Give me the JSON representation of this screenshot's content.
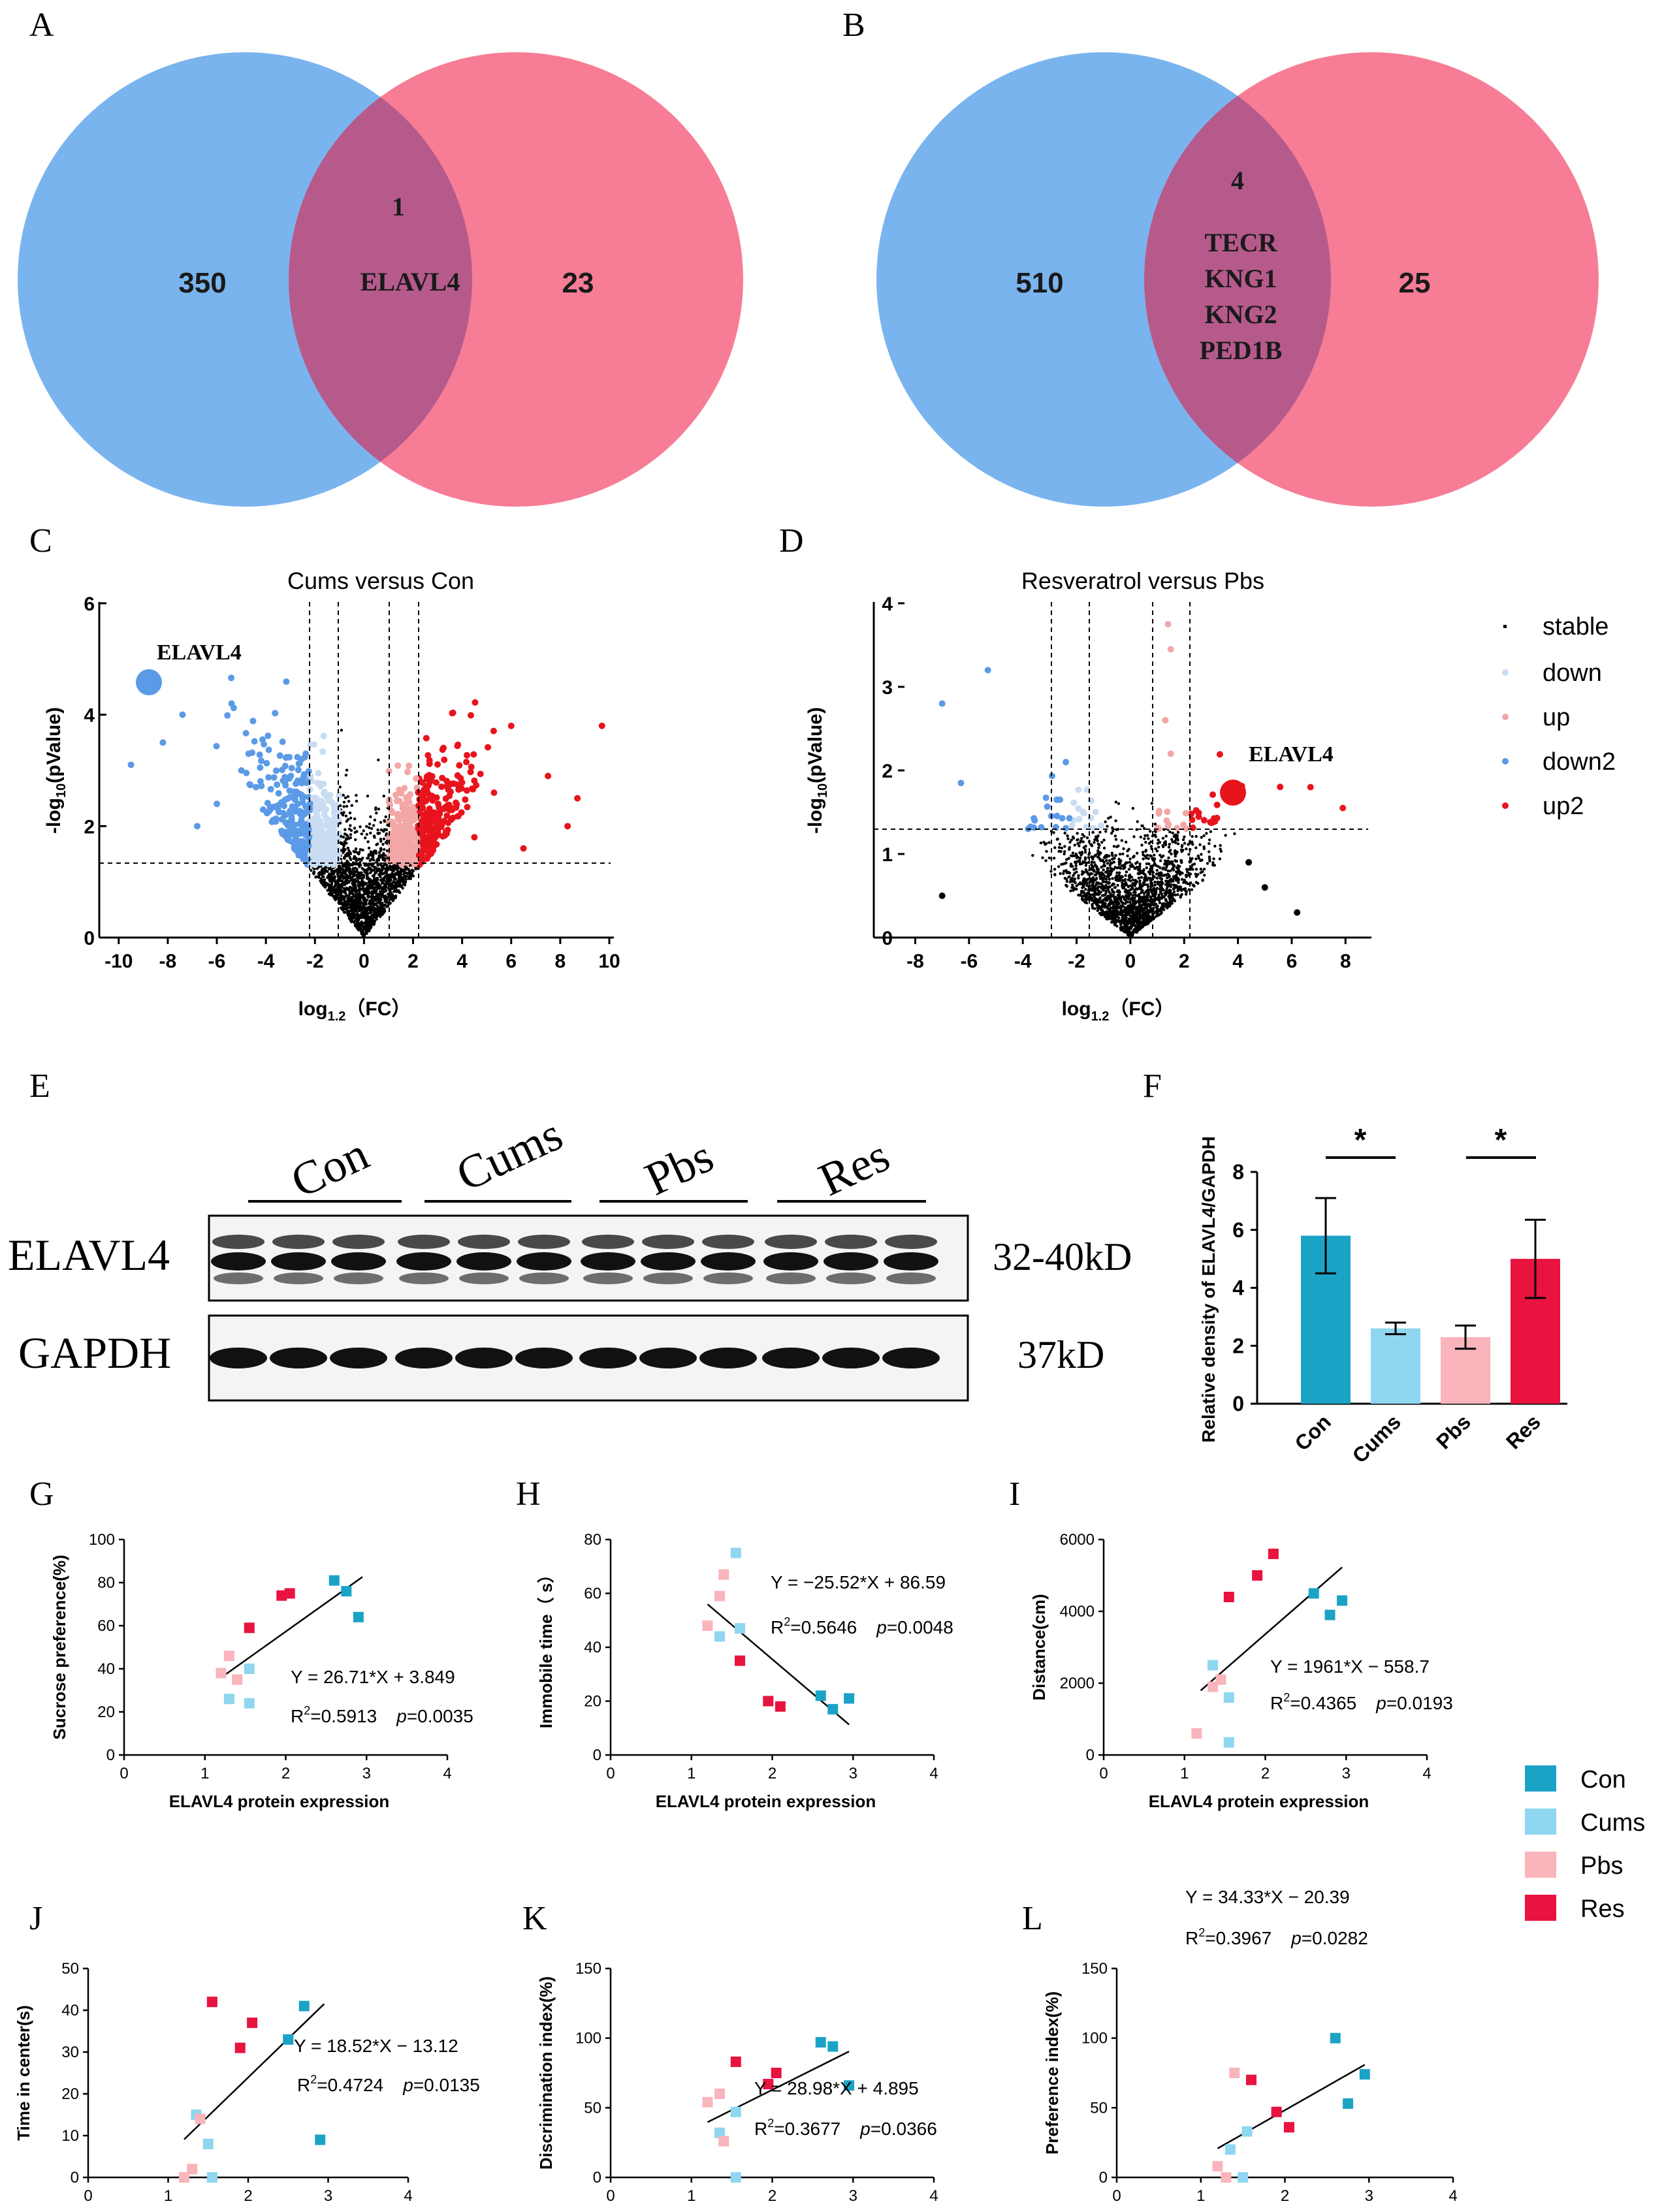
{
  "panels": {
    "A": "A",
    "B": "B",
    "C": "C",
    "D": "D",
    "E": "E",
    "F": "F",
    "G": "G",
    "H": "H",
    "I": "I",
    "J": "J",
    "K": "K",
    "L": "L"
  },
  "colors": {
    "blue_circle": "#7ab4ee",
    "pink_circle": "#f67d95",
    "overlap": "#b65a8c",
    "con": "#1ba3c6",
    "cums": "#8fd6f0",
    "pbs": "#f9b4bc",
    "res": "#e8133f",
    "down": "#c9dcf2",
    "up": "#f3a6a6",
    "down2": "#5b9ae6",
    "up2": "#e8141d"
  },
  "venn_a": {
    "left_count": "350",
    "overlap_count": "1",
    "overlap_genes": [
      "ELAVL4"
    ],
    "right_count": "23"
  },
  "venn_b": {
    "left_count": "510",
    "overlap_count": "4",
    "overlap_genes": [
      "TECR",
      "KNG1",
      "KNG2",
      "PED1B"
    ],
    "right_count": "25"
  },
  "volcano_c": {
    "title": "Cums versus Con",
    "ylabel": "-log10(pValue)",
    "ylabel_main": "-log",
    "ylabel_sub": "10",
    "ylabel_rest": "(pValue)",
    "xlabel_main": "log",
    "xlabel_sub": "1.2",
    "xlabel_rest": "（FC）",
    "xticks": [
      "-10",
      "-8",
      "-6",
      "-4",
      "-2",
      "0",
      "2",
      "4",
      "6",
      "8",
      "10"
    ],
    "yticks": [
      "0",
      "2",
      "4",
      "6"
    ],
    "highlight": "ELAVL4"
  },
  "volcano_d": {
    "title": "Resveratrol versus Pbs",
    "ylabel_main": "-log",
    "ylabel_sub": "10",
    "ylabel_rest": "(pValue)",
    "xlabel_main": "log",
    "xlabel_sub": "1.2",
    "xlabel_rest": "（FC）",
    "xticks": [
      "-8",
      "-6",
      "-4",
      "-2",
      "0",
      "2",
      "4",
      "6",
      "8"
    ],
    "yticks": [
      "0",
      "1",
      "2",
      "3",
      "4"
    ],
    "highlight": "ELAVL4"
  },
  "volcano_legend": [
    "stable",
    "down",
    "up",
    "down2",
    "up2"
  ],
  "blot": {
    "groups": [
      "Con",
      "Cums",
      "Pbs",
      "Res"
    ],
    "row1_label": "ELAVL4",
    "row1_size": "32-40kD",
    "row2_label": "GAPDH",
    "row2_size": "37kD"
  },
  "chart_data": [
    {
      "id": "F",
      "type": "bar",
      "title": "",
      "categories": [
        "Con",
        "Cums",
        "Pbs",
        "Res"
      ],
      "values": [
        5.8,
        2.6,
        2.3,
        5.0
      ],
      "errors": [
        1.3,
        0.2,
        0.4,
        1.35
      ],
      "ylabel": "Relative density of ELAVL4/GAPDH",
      "ylim": [
        0,
        8
      ],
      "yticks": [
        "0",
        "2",
        "4",
        "6",
        "8"
      ],
      "significance": [
        "*",
        "*"
      ]
    },
    {
      "id": "G",
      "type": "scatter",
      "ylabel": "Sucrose preference(%)",
      "xlabel": "ELAVL4 protein expression",
      "xlim": [
        0,
        4
      ],
      "ylim": [
        0,
        100
      ],
      "xticks": [
        "0",
        "1",
        "2",
        "3",
        "4"
      ],
      "yticks": [
        "0",
        "20",
        "40",
        "60",
        "80",
        "100"
      ],
      "equation": "Y = 26.71*X + 3.849",
      "r2_prefix": "R",
      "r2_value": "=0.5913",
      "p_label": "p",
      "p_value": "=0.0035",
      "fit": [
        1.2,
        2.95
      ],
      "slope": 26.71,
      "intercept": 3.849,
      "points": [
        [
          2.6,
          81,
          "con"
        ],
        [
          2.75,
          76,
          "con"
        ],
        [
          2.9,
          64,
          "con"
        ],
        [
          1.55,
          40,
          "cums"
        ],
        [
          1.3,
          26,
          "cums"
        ],
        [
          1.55,
          24,
          "cums"
        ],
        [
          1.2,
          38,
          "pbs"
        ],
        [
          1.3,
          46,
          "pbs"
        ],
        [
          1.4,
          35,
          "pbs"
        ],
        [
          1.55,
          59,
          "res"
        ],
        [
          1.95,
          74,
          "res"
        ],
        [
          2.05,
          75,
          "res"
        ]
      ]
    },
    {
      "id": "H",
      "type": "scatter",
      "ylabel": "Immobile time（ s）",
      "xlabel": "ELAVL4 protein expression",
      "xlim": [
        0,
        4
      ],
      "ylim": [
        0,
        80
      ],
      "xticks": [
        "0",
        "1",
        "2",
        "3",
        "4"
      ],
      "yticks": [
        "0",
        "20",
        "40",
        "60",
        "80"
      ],
      "equation": "Y = −25.52*X + 86.59",
      "r2_prefix": "R",
      "r2_value": "=0.5646",
      "p_label": "p",
      "p_value": "=0.0048",
      "fit": [
        1.2,
        2.95
      ],
      "slope": -25.52,
      "intercept": 86.59,
      "points": [
        [
          2.6,
          22,
          "con"
        ],
        [
          2.75,
          17,
          "con"
        ],
        [
          2.95,
          21,
          "con"
        ],
        [
          1.55,
          75,
          "cums"
        ],
        [
          1.6,
          47,
          "cums"
        ],
        [
          1.35,
          44,
          "cums"
        ],
        [
          1.2,
          48,
          "pbs"
        ],
        [
          1.4,
          67,
          "pbs"
        ],
        [
          1.35,
          59,
          "pbs"
        ],
        [
          1.6,
          35,
          "res"
        ],
        [
          1.95,
          20,
          "res"
        ],
        [
          2.1,
          18,
          "res"
        ]
      ]
    },
    {
      "id": "I",
      "type": "scatter",
      "ylabel": "Distance(cm)",
      "xlabel": "ELAVL4 protein expression",
      "xlim": [
        0,
        4
      ],
      "ylim": [
        0,
        6000
      ],
      "xticks": [
        "0",
        "1",
        "2",
        "3",
        "4"
      ],
      "yticks": [
        "0",
        "2000",
        "4000",
        "6000"
      ],
      "equation": "Y = 1961*X − 558.7",
      "r2_prefix": "R",
      "r2_value": "=0.4365",
      "p_label": "p",
      "p_value": "=0.0193",
      "fit": [
        1.2,
        2.95
      ],
      "slope": 1961,
      "intercept": -558.7,
      "points": [
        [
          2.6,
          4500,
          "con"
        ],
        [
          2.8,
          3900,
          "con"
        ],
        [
          2.95,
          4300,
          "con"
        ],
        [
          1.35,
          2500,
          "cums"
        ],
        [
          1.55,
          1600,
          "cums"
        ],
        [
          1.55,
          350,
          "cums"
        ],
        [
          1.15,
          600,
          "pbs"
        ],
        [
          1.35,
          1900,
          "pbs"
        ],
        [
          1.45,
          2100,
          "pbs"
        ],
        [
          1.55,
          4400,
          "res"
        ],
        [
          1.9,
          5000,
          "res"
        ],
        [
          2.1,
          5600,
          "res"
        ]
      ]
    },
    {
      "id": "J",
      "type": "scatter",
      "ylabel": "Time in center(s)",
      "xlabel": "ELAVL4 protein expression",
      "xlim": [
        0,
        4
      ],
      "ylim": [
        0,
        50
      ],
      "xticks": [
        "0",
        "1",
        "2",
        "3",
        "4"
      ],
      "yticks": [
        "0",
        "10",
        "20",
        "30",
        "40",
        "50"
      ],
      "equation": "Y = 18.52*X − 13.12",
      "r2_prefix": "R",
      "r2_value": "=0.4724",
      "p_label": "p",
      "p_value": "=0.0135",
      "fit": [
        1.2,
        2.95
      ],
      "slope": 18.52,
      "intercept": -13.12,
      "points": [
        [
          2.5,
          33,
          "con"
        ],
        [
          2.7,
          41,
          "con"
        ],
        [
          2.9,
          9,
          "con"
        ],
        [
          1.35,
          15,
          "cums"
        ],
        [
          1.5,
          8,
          "cums"
        ],
        [
          1.55,
          0,
          "cums"
        ],
        [
          1.2,
          0,
          "pbs"
        ],
        [
          1.3,
          2,
          "pbs"
        ],
        [
          1.4,
          14,
          "pbs"
        ],
        [
          1.55,
          42,
          "res"
        ],
        [
          1.9,
          31,
          "res"
        ],
        [
          2.05,
          37,
          "res"
        ]
      ]
    },
    {
      "id": "K",
      "type": "scatter",
      "ylabel": "Discrimination index(%)",
      "xlabel": "ELAVL4 protein expression",
      "xlim": [
        0,
        4
      ],
      "ylim": [
        0,
        150
      ],
      "xticks": [
        "0",
        "1",
        "2",
        "3",
        "4"
      ],
      "yticks": [
        "0",
        "50",
        "100",
        "150"
      ],
      "equation": "Y = 28.98*X + 4.895",
      "r2_prefix": "R",
      "r2_value": "=0.3677",
      "p_label": "p",
      "p_value": "=0.0366",
      "fit": [
        1.2,
        2.95
      ],
      "slope": 28.98,
      "intercept": 4.895,
      "points": [
        [
          2.6,
          97,
          "con"
        ],
        [
          2.75,
          94,
          "con"
        ],
        [
          2.95,
          66,
          "con"
        ],
        [
          1.35,
          32,
          "cums"
        ],
        [
          1.55,
          47,
          "cums"
        ],
        [
          1.55,
          0,
          "cums"
        ],
        [
          1.2,
          54,
          "pbs"
        ],
        [
          1.35,
          60,
          "pbs"
        ],
        [
          1.4,
          26,
          "pbs"
        ],
        [
          1.55,
          83,
          "res"
        ],
        [
          1.95,
          67,
          "res"
        ],
        [
          2.05,
          75,
          "res"
        ]
      ]
    },
    {
      "id": "L",
      "type": "scatter",
      "ylabel": "Preference index(%)",
      "xlabel": "ELAVL4 protein expression",
      "xlim": [
        0,
        4
      ],
      "ylim": [
        0,
        150
      ],
      "xticks": [
        "0",
        "1",
        "2",
        "3",
        "4"
      ],
      "yticks": [
        "0",
        "50",
        "100",
        "150"
      ],
      "equation": "Y = 34.33*X − 20.39",
      "r2_prefix": "R",
      "r2_value": "=0.3967",
      "p_label": "p",
      "p_value": "=0.0282",
      "fit": [
        1.2,
        2.95
      ],
      "slope": 34.33,
      "intercept": -20.39,
      "points": [
        [
          2.6,
          100,
          "con"
        ],
        [
          2.75,
          53,
          "con"
        ],
        [
          2.95,
          74,
          "con"
        ],
        [
          1.35,
          20,
          "cums"
        ],
        [
          1.55,
          33,
          "cums"
        ],
        [
          1.5,
          0,
          "cums"
        ],
        [
          1.2,
          8,
          "pbs"
        ],
        [
          1.3,
          0,
          "pbs"
        ],
        [
          1.4,
          75,
          "pbs"
        ],
        [
          1.6,
          70,
          "res"
        ],
        [
          1.9,
          47,
          "res"
        ],
        [
          2.05,
          36,
          "res"
        ]
      ]
    }
  ],
  "legend": [
    "Con",
    "Cums",
    "Pbs",
    "Res"
  ]
}
